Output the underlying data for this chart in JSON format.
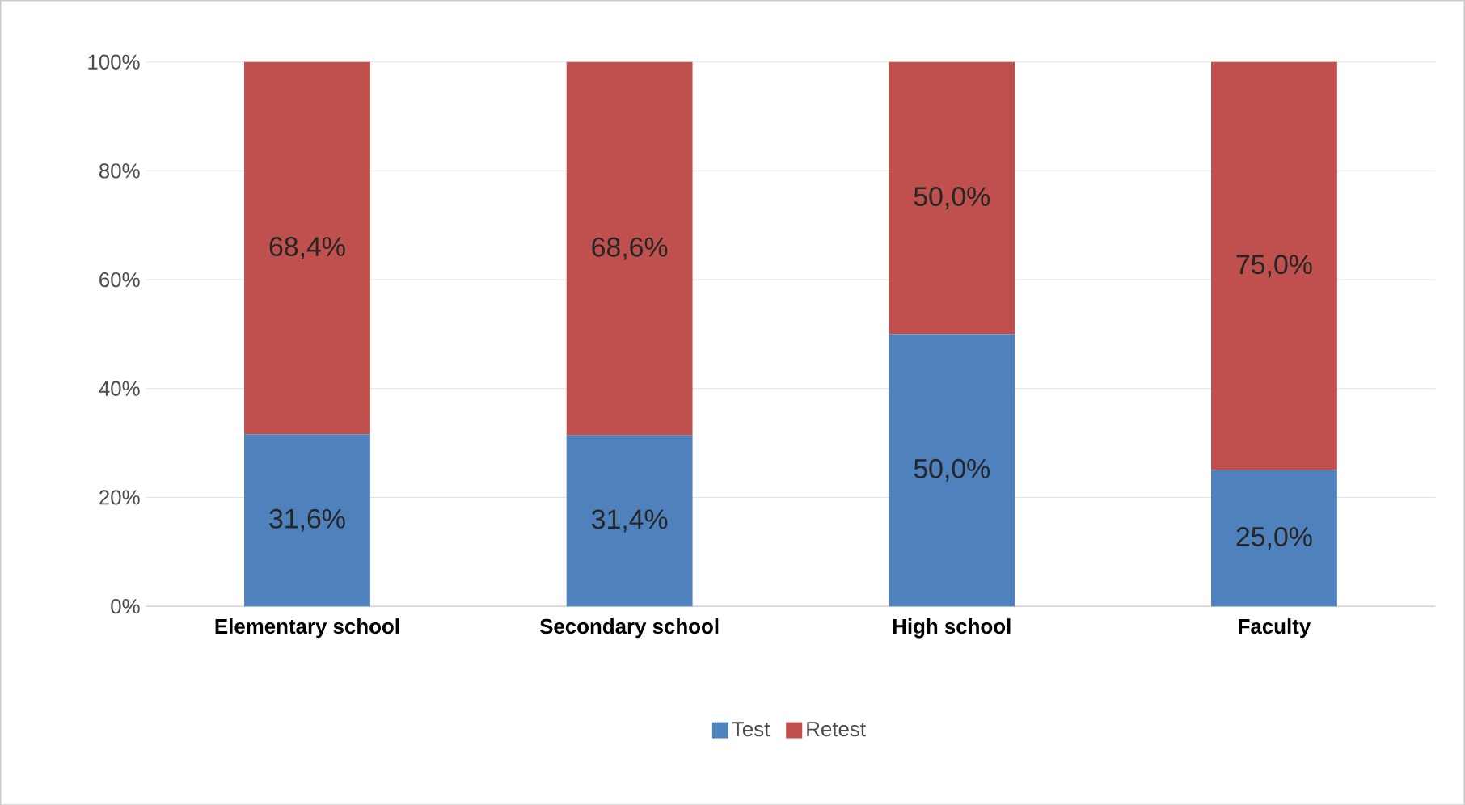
{
  "chart_data": {
    "type": "bar",
    "stacked": true,
    "categories": [
      "Elementary school",
      "Secondary school",
      "High school",
      "Faculty"
    ],
    "series": [
      {
        "name": "Test",
        "color": "#4f81bd",
        "values": [
          31.6,
          31.4,
          50.0,
          25.0
        ],
        "value_labels": [
          "31,6%",
          "31,4%",
          "50,0%",
          "25,0%"
        ]
      },
      {
        "name": "Retest",
        "color": "#c0504d",
        "values": [
          68.4,
          68.6,
          50.0,
          75.0
        ],
        "value_labels": [
          "68,4%",
          "68,6%",
          "50,0%",
          "75,0%"
        ]
      }
    ],
    "ylim": [
      0,
      100
    ],
    "yticks": [
      {
        "value": 0,
        "label": "0%"
      },
      {
        "value": 20,
        "label": "20%"
      },
      {
        "value": 40,
        "label": "40%"
      },
      {
        "value": 60,
        "label": "60%"
      },
      {
        "value": 80,
        "label": "80%"
      },
      {
        "value": 100,
        "label": "100%"
      }
    ],
    "grid": "y",
    "legend": "bottom"
  }
}
